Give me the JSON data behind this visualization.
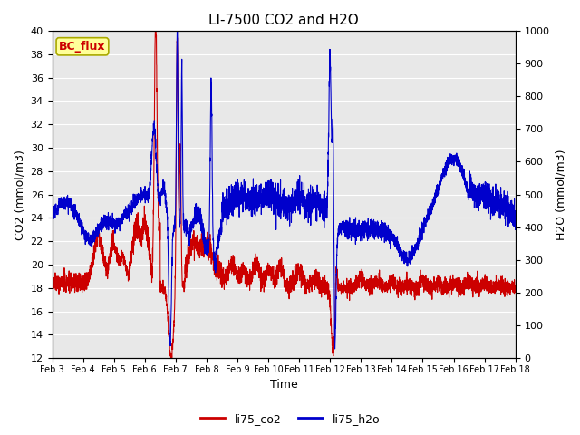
{
  "title": "LI-7500 CO2 and H2O",
  "xlabel": "Time",
  "ylabel_left": "CO2 (mmol/m3)",
  "ylabel_right": "H2O (mmol/m3)",
  "ylim_left": [
    12,
    40
  ],
  "ylim_right": [
    0,
    1000
  ],
  "yticks_left": [
    12,
    14,
    16,
    18,
    20,
    22,
    24,
    26,
    28,
    30,
    32,
    34,
    36,
    38,
    40
  ],
  "yticks_right": [
    0,
    100,
    200,
    300,
    400,
    500,
    600,
    700,
    800,
    900,
    1000
  ],
  "xtick_labels": [
    "Feb 3",
    "Feb 4",
    "Feb 5",
    "Feb 6",
    "Feb 7",
    "Feb 8",
    "Feb 9",
    "Feb 10",
    "Feb 11",
    "Feb 12",
    "Feb 13",
    "Feb 14",
    "Feb 15",
    "Feb 16",
    "Feb 17",
    "Feb 18"
  ],
  "co2_color": "#cc0000",
  "h2o_color": "#0000cc",
  "bg_color": "#e8e8e8",
  "grid_color": "#ffffff",
  "annotation_text": "BC_flux",
  "annotation_bg": "#ffff99",
  "annotation_border": "#aaaa00",
  "legend_co2": "li75_co2",
  "legend_h2o": "li75_h2o",
  "title_fontsize": 11,
  "axis_fontsize": 9,
  "tick_fontsize": 8
}
